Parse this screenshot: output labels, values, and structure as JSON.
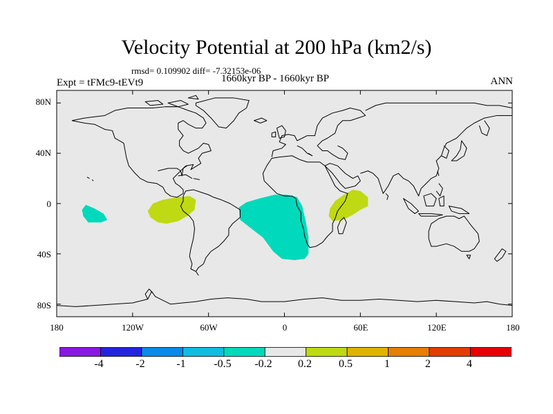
{
  "header": {
    "title": "Velocity Potential at 200 hPa (km2/s)",
    "stats": "rmsd= 0.109902 diff= -7.32153e-06",
    "period": "1660kyr BP - 1660kyr BP",
    "experiment": "Expt = tFMc9-tEVt9",
    "season": "ANN"
  },
  "map": {
    "projection": "cylindrical-equidistant",
    "lat_range": [
      -90,
      90
    ],
    "lon_range": [
      -180,
      180
    ],
    "background_color": "#e8e8e8",
    "coastline_color": "#000000",
    "lat_labels": [
      {
        "value": 80,
        "label": "80N"
      },
      {
        "value": 40,
        "label": "40N"
      },
      {
        "value": 0,
        "label": "0"
      },
      {
        "value": -40,
        "label": "40S"
      },
      {
        "value": -80,
        "label": "80S"
      }
    ],
    "lon_labels": [
      {
        "value": -180,
        "label": "180"
      },
      {
        "value": -120,
        "label": "120W"
      },
      {
        "value": -60,
        "label": "60W"
      },
      {
        "value": 0,
        "label": "0"
      },
      {
        "value": 60,
        "label": "60E"
      },
      {
        "value": 120,
        "label": "120E"
      },
      {
        "value": 180,
        "label": "180"
      }
    ],
    "anomaly_regions": [
      {
        "name": "central-pacific",
        "range": "-0.5 to -0.2",
        "color": "#00d9bb",
        "polygon": [
          [
            -157,
            -1
          ],
          [
            -150,
            -4
          ],
          [
            -143,
            -8
          ],
          [
            -140,
            -13
          ],
          [
            -145,
            -15
          ],
          [
            -155,
            -15
          ],
          [
            -159,
            -10
          ],
          [
            -160,
            -5
          ]
        ]
      },
      {
        "name": "eastern-pacific",
        "range": "0.2 to 0.5",
        "color": "#bfd912",
        "polygon": [
          [
            -108,
            -6
          ],
          [
            -104,
            0
          ],
          [
            -96,
            3
          ],
          [
            -85,
            5
          ],
          [
            -75,
            6
          ],
          [
            -70,
            3
          ],
          [
            -71,
            -5
          ],
          [
            -77,
            -10
          ],
          [
            -84,
            -14
          ],
          [
            -93,
            -16
          ],
          [
            -100,
            -15
          ],
          [
            -106,
            -11
          ]
        ]
      },
      {
        "name": "south-atlantic",
        "range": "-0.5 to -0.2",
        "color": "#00d9bb",
        "polygon": [
          [
            -36,
            -3
          ],
          [
            -30,
            1
          ],
          [
            -20,
            4
          ],
          [
            -8,
            7
          ],
          [
            2,
            7
          ],
          [
            10,
            5
          ],
          [
            14,
            -2
          ],
          [
            17,
            -15
          ],
          [
            19,
            -27
          ],
          [
            19,
            -40
          ],
          [
            16,
            -44
          ],
          [
            8,
            -45
          ],
          [
            -2,
            -44
          ],
          [
            -9,
            -38
          ],
          [
            -17,
            -27
          ],
          [
            -26,
            -20
          ],
          [
            -35,
            -13
          ]
        ]
      },
      {
        "name": "indian-ocean",
        "range": "0.2 to 0.5",
        "color": "#bfd912",
        "polygon": [
          [
            36,
            -4
          ],
          [
            40,
            2
          ],
          [
            47,
            7
          ],
          [
            54,
            11
          ],
          [
            60,
            10
          ],
          [
            66,
            5
          ],
          [
            66,
            -2
          ],
          [
            60,
            -5
          ],
          [
            54,
            -9
          ],
          [
            46,
            -13
          ],
          [
            38,
            -14
          ],
          [
            35,
            -10
          ]
        ]
      }
    ]
  },
  "colorbar": {
    "colors": [
      "#8a18e2",
      "#2424e0",
      "#0a8ae6",
      "#10bce0",
      "#00d9bb",
      "#e8e8e8",
      "#bfd912",
      "#e2b200",
      "#e47f00",
      "#e43d00",
      "#e80000"
    ],
    "labels": [
      "-4",
      "-2",
      "-1",
      "-0.5",
      "-0.2",
      "0.2",
      "0.5",
      "1",
      "2",
      "4"
    ]
  }
}
